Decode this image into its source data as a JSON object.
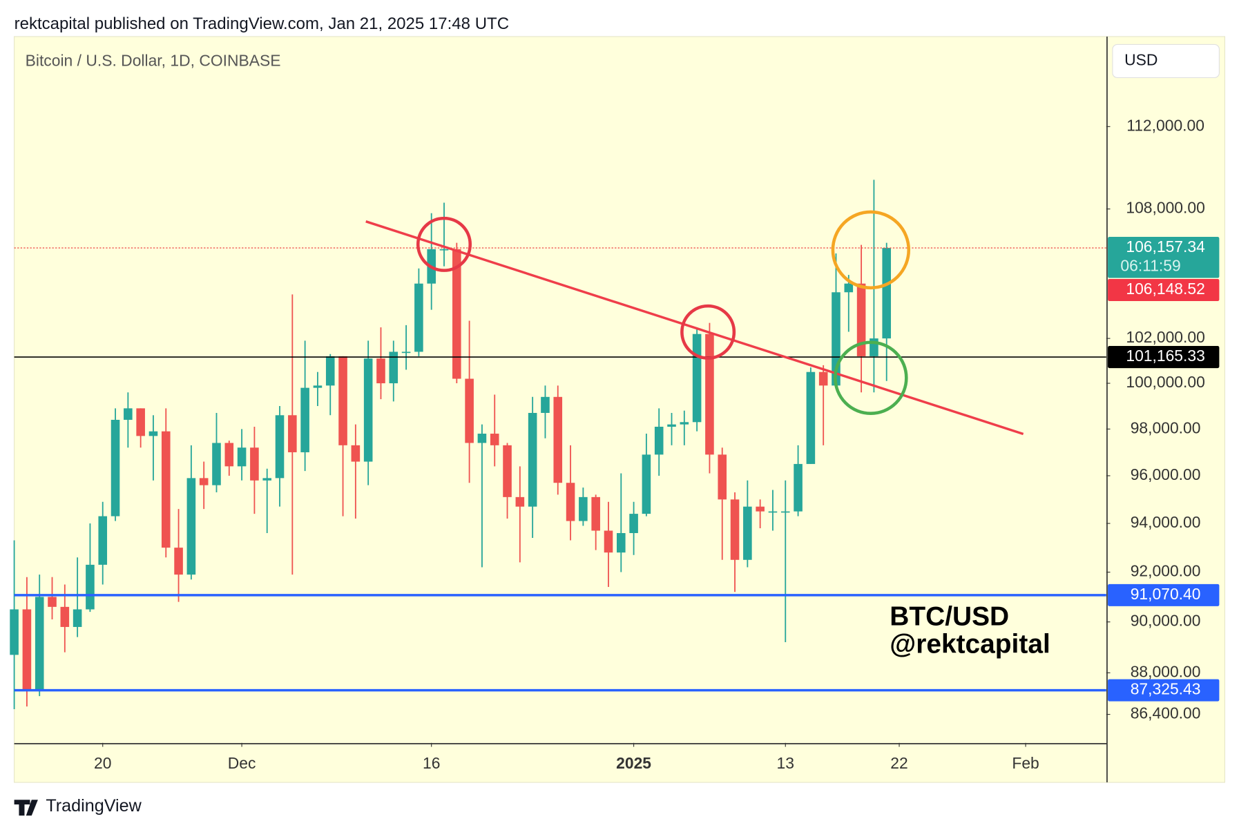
{
  "header": "rektcapital published on TradingView.com, Jan 21, 2025 17:48 UTC",
  "footer": "TradingView",
  "chart_data": {
    "type": "candlestick",
    "title": "Bitcoin / U.S. Dollar, 1D, COINBASE",
    "currency": "USD",
    "log_scale": true,
    "up_color": "#26a69a",
    "down_color": "#ef5350",
    "open": [
      88700,
      90500,
      87300,
      91000,
      90600,
      89800,
      90500,
      92300,
      94300,
      98400,
      98900,
      97700,
      97900,
      93000,
      91900,
      95900,
      95600,
      97400,
      96400,
      97200,
      95800,
      95900,
      98600,
      97000,
      99800,
      99900,
      101200,
      97300,
      96600,
      101100,
      100000,
      101400,
      101400,
      104500,
      106100,
      106100,
      100200,
      97400,
      97800,
      97300,
      95100,
      94700,
      98700,
      99400,
      95700,
      94100,
      95100,
      93700,
      92800,
      93600,
      94400,
      96900,
      98100,
      98200,
      98300,
      102200,
      96900,
      95000,
      92500,
      94700,
      94500,
      94500,
      94500,
      96500,
      100500,
      99900,
      104100,
      104500,
      101200,
      102000
    ],
    "high": [
      93300,
      91800,
      91900,
      91800,
      91500,
      92600,
      94000,
      94900,
      98900,
      99600,
      98900,
      98600,
      98900,
      94600,
      97300,
      96600,
      98700,
      97500,
      98000,
      98100,
      96300,
      99000,
      104000,
      101900,
      100500,
      101300,
      101200,
      98200,
      101900,
      102500,
      101900,
      102600,
      105200,
      107800,
      108300,
      106400,
      102800,
      98200,
      99500,
      97400,
      96400,
      99400,
      99900,
      99900,
      97300,
      95500,
      95200,
      94900,
      96100,
      94900,
      97800,
      98900,
      98700,
      98800,
      102500,
      102700,
      97200,
      95300,
      95800,
      95000,
      95400,
      95800,
      97300,
      100700,
      100800,
      105900,
      104900,
      106300,
      109400,
      106400
    ],
    "low": [
      86600,
      86700,
      87100,
      90100,
      88800,
      89400,
      90400,
      91500,
      94100,
      97200,
      97200,
      95800,
      92600,
      90800,
      91700,
      94600,
      95300,
      96000,
      95800,
      94400,
      93600,
      94700,
      91900,
      96200,
      99000,
      98600,
      94300,
      94200,
      95600,
      99300,
      99200,
      100600,
      101200,
      103300,
      105300,
      100000,
      95700,
      92200,
      96400,
      94200,
      92400,
      93400,
      97600,
      95200,
      93300,
      93900,
      92900,
      91400,
      92000,
      92700,
      94300,
      96000,
      97300,
      97300,
      97900,
      96100,
      92500,
      91200,
      92200,
      93800,
      93700,
      89200,
      94300,
      96500,
      97300,
      99900,
      102300,
      99600,
      99600,
      100100
    ],
    "close": [
      90500,
      87300,
      91000,
      90600,
      89800,
      90500,
      92300,
      94300,
      98400,
      98900,
      97700,
      97900,
      93000,
      91900,
      95900,
      95600,
      97400,
      96400,
      97200,
      95800,
      95900,
      98600,
      97000,
      99800,
      99900,
      101200,
      97300,
      96600,
      101100,
      100000,
      101400,
      101400,
      104500,
      106100,
      106100,
      100200,
      97400,
      97800,
      97300,
      95100,
      94700,
      98700,
      99400,
      95700,
      94100,
      95100,
      93700,
      92800,
      93600,
      94400,
      96900,
      98100,
      98200,
      98300,
      102200,
      96900,
      95000,
      92500,
      94700,
      94500,
      94500,
      94500,
      96500,
      100500,
      99900,
      104100,
      104500,
      101200,
      102000,
      106157.34
    ],
    "xlim": [
      0,
      86.375
    ],
    "xticks": [
      {
        "value": 7,
        "label": "20"
      },
      {
        "value": 18,
        "label": "Dec"
      },
      {
        "value": 33,
        "label": "16"
      },
      {
        "value": 49,
        "label": "2025"
      },
      {
        "value": 61,
        "label": "13"
      },
      {
        "value": 70,
        "label": "22"
      },
      {
        "value": 80,
        "label": "Feb"
      }
    ],
    "ylim": [
      85320,
      116460
    ],
    "yticks": [
      {
        "value": 86400,
        "label": "86,400.00"
      },
      {
        "value": 88000,
        "label": "88,000.00"
      },
      {
        "value": 90000,
        "label": "90,000.00"
      },
      {
        "value": 92000,
        "label": "92,000.00"
      },
      {
        "value": 94000,
        "label": "94,000.00"
      },
      {
        "value": 96000,
        "label": "96,000.00"
      },
      {
        "value": 98000,
        "label": "98,000.00"
      },
      {
        "value": 100000,
        "label": "100,000.00"
      },
      {
        "value": 102000,
        "label": "102,000.00"
      },
      {
        "value": 108000,
        "label": "108,000.00"
      },
      {
        "value": 112000,
        "label": "112,000.00"
      }
    ],
    "levels": [
      {
        "value": 106157.34,
        "label": "106,157.34",
        "color": "#26a69a",
        "line_color": "#ef5350",
        "style": "dotted"
      },
      {
        "value": 101165.33,
        "label": "101,165.33",
        "color": "#000000",
        "line_color": "#000000",
        "style": "solid"
      },
      {
        "value": 91070.4,
        "label": "91,070.40",
        "color": "#2962ff",
        "line_color": "#2962ff",
        "style": "thick"
      },
      {
        "value": 87325.43,
        "label": "87,325.43",
        "color": "#2962ff",
        "line_color": "#2962ff",
        "style": "thick"
      }
    ],
    "countdown": "06:11:59",
    "previous_close": {
      "value": 106148.52,
      "label": "106,148.52",
      "color": "#f23645"
    },
    "annotations": [
      "BTC/USD",
      "@rektcapital"
    ]
  }
}
